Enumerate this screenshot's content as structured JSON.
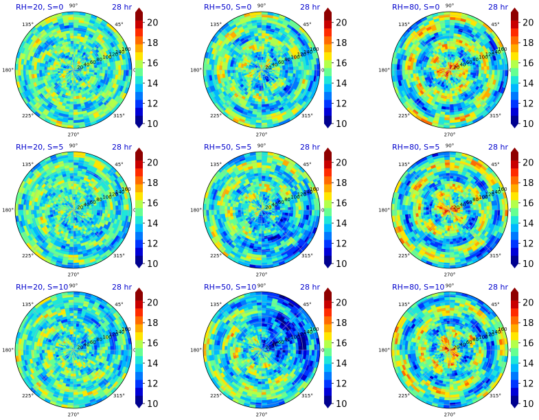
{
  "chart_data": [
    {
      "type": "heatmap",
      "projection": "polar",
      "title_left": "RH=20, S=0",
      "title_right": "28 hr",
      "rh": 20,
      "s": 0,
      "angle_ticks": [
        "0°",
        "45°",
        "90°",
        "135°",
        "180°",
        "225°",
        "270°",
        "315°"
      ],
      "radial_ticks": [
        20,
        40,
        60,
        80,
        100,
        120,
        140,
        160
      ],
      "colorbar_ticks": [
        10,
        12,
        14,
        16,
        18,
        20
      ],
      "clim": [
        10,
        21
      ],
      "grid": true
    },
    {
      "type": "heatmap",
      "projection": "polar",
      "title_left": "RH=50, S=0",
      "title_right": "28 hr",
      "rh": 50,
      "s": 0,
      "angle_ticks": [
        "0°",
        "45°",
        "90°",
        "135°",
        "180°",
        "225°",
        "270°",
        "315°"
      ],
      "radial_ticks": [
        20,
        40,
        60,
        80,
        100,
        120,
        140,
        160
      ],
      "colorbar_ticks": [
        10,
        12,
        14,
        16,
        18,
        20
      ],
      "clim": [
        10,
        21
      ],
      "grid": true
    },
    {
      "type": "heatmap",
      "projection": "polar",
      "title_left": "RH=80, S=0",
      "title_right": "28 hr",
      "rh": 80,
      "s": 0,
      "angle_ticks": [
        "0°",
        "45°",
        "90°",
        "135°",
        "180°",
        "225°",
        "270°",
        "315°"
      ],
      "radial_ticks": [
        20,
        40,
        60,
        80,
        100,
        120,
        140,
        160
      ],
      "colorbar_ticks": [
        10,
        12,
        14,
        16,
        18,
        20
      ],
      "clim": [
        10,
        21
      ],
      "grid": true
    },
    {
      "type": "heatmap",
      "projection": "polar",
      "title_left": "RH=20, S=5",
      "title_right": "28 hr",
      "rh": 20,
      "s": 5,
      "angle_ticks": [
        "0°",
        "45°",
        "90°",
        "135°",
        "180°",
        "225°",
        "270°",
        "315°"
      ],
      "radial_ticks": [
        20,
        40,
        60,
        80,
        100,
        120,
        140,
        160
      ],
      "colorbar_ticks": [
        10,
        12,
        14,
        16,
        18,
        20
      ],
      "clim": [
        10,
        21
      ],
      "grid": true
    },
    {
      "type": "heatmap",
      "projection": "polar",
      "title_left": "RH=50, S=5",
      "title_right": "28 hr",
      "rh": 50,
      "s": 5,
      "angle_ticks": [
        "0°",
        "45°",
        "90°",
        "135°",
        "180°",
        "225°",
        "270°",
        "315°"
      ],
      "radial_ticks": [
        20,
        40,
        60,
        80,
        100,
        120,
        140,
        160
      ],
      "colorbar_ticks": [
        10,
        12,
        14,
        16,
        18,
        20
      ],
      "clim": [
        10,
        21
      ],
      "grid": true
    },
    {
      "type": "heatmap",
      "projection": "polar",
      "title_left": "RH=80, S=5",
      "title_right": "28 hr",
      "rh": 80,
      "s": 5,
      "angle_ticks": [
        "0°",
        "45°",
        "90°",
        "135°",
        "180°",
        "225°",
        "270°",
        "315°"
      ],
      "radial_ticks": [
        20,
        40,
        60,
        80,
        100,
        120,
        140,
        160
      ],
      "colorbar_ticks": [
        10,
        12,
        14,
        16,
        18,
        20
      ],
      "clim": [
        10,
        21
      ],
      "grid": true
    },
    {
      "type": "heatmap",
      "projection": "polar",
      "title_left": "RH=20, S=10",
      "title_right": "28 hr",
      "rh": 20,
      "s": 10,
      "angle_ticks": [
        "0°",
        "45°",
        "90°",
        "135°",
        "180°",
        "225°",
        "270°",
        "315°"
      ],
      "radial_ticks": [
        20,
        40,
        60,
        80,
        100,
        120,
        140,
        160
      ],
      "colorbar_ticks": [
        10,
        12,
        14,
        16,
        18,
        20
      ],
      "clim": [
        10,
        21
      ],
      "grid": true
    },
    {
      "type": "heatmap",
      "projection": "polar",
      "title_left": "RH=50, S=10",
      "title_right": "28 hr",
      "rh": 50,
      "s": 10,
      "angle_ticks": [
        "0°",
        "45°",
        "90°",
        "135°",
        "180°",
        "225°",
        "270°",
        "315°"
      ],
      "radial_ticks": [
        20,
        40,
        60,
        80,
        100,
        120,
        140,
        160
      ],
      "colorbar_ticks": [
        10,
        12,
        14,
        16,
        18,
        20
      ],
      "clim": [
        10,
        21
      ],
      "grid": true
    },
    {
      "type": "heatmap",
      "projection": "polar",
      "title_left": "RH=80, S=10",
      "title_right": "28 hr",
      "rh": 80,
      "s": 10,
      "angle_ticks": [
        "0°",
        "45°",
        "90°",
        "135°",
        "180°",
        "225°",
        "270°",
        "315°"
      ],
      "radial_ticks": [
        20,
        40,
        60,
        80,
        100,
        120,
        140,
        160
      ],
      "colorbar_ticks": [
        10,
        12,
        14,
        16,
        18,
        20
      ],
      "clim": [
        10,
        21
      ],
      "grid": true
    }
  ],
  "colormap": [
    "#00008f",
    "#0000d6",
    "#0035ff",
    "#0078ff",
    "#00b8ff",
    "#1fe6d9",
    "#66ff91",
    "#b3ff4a",
    "#ffe600",
    "#ffab00",
    "#ff6a00",
    "#ff2b00",
    "#c80000",
    "#8f0000"
  ],
  "title_color": "#0000cc"
}
